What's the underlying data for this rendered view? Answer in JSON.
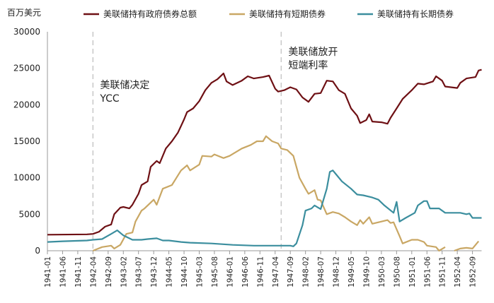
{
  "chart_data": {
    "type": "line",
    "ylabel": "百万美元",
    "ylim": [
      0,
      30000
    ],
    "yticks": [
      0,
      5000,
      10000,
      15000,
      20000,
      25000,
      30000
    ],
    "xrange": [
      "1941-01",
      "1952-12"
    ],
    "xticks": [
      "1941-01",
      "1941-06",
      "1941-11",
      "1942-04",
      "1942-09",
      "1943-02",
      "1943-07",
      "1943-12",
      "1944-05",
      "1944-10",
      "1945-03",
      "1945-08",
      "1946-01",
      "1946-06",
      "1946-11",
      "1947-04",
      "1947-09",
      "1948-02",
      "1948-07",
      "1948-12",
      "1949-05",
      "1949-10",
      "1950-03",
      "1950-08",
      "1951-01",
      "1951-06",
      "1951-11",
      "1952-04",
      "1952-09"
    ],
    "grid": false,
    "legend_position": "top",
    "annotations": [
      {
        "lines": [
          "美联储决定",
          "YCC"
        ],
        "x": "1942-04"
      },
      {
        "lines": [
          "美联储放开",
          "短端利率"
        ],
        "x": "1947-06"
      }
    ],
    "series": [
      {
        "name": "美联储持有政府债券总额",
        "color": "#6e1014",
        "points": [
          [
            "1941-01",
            2200
          ],
          [
            "1942-02",
            2250
          ],
          [
            "1942-04",
            2300
          ],
          [
            "1942-06",
            2600
          ],
          [
            "1942-08",
            3300
          ],
          [
            "1942-10",
            3600
          ],
          [
            "1942-11",
            5000
          ],
          [
            "1943-01",
            5900
          ],
          [
            "1943-02",
            6000
          ],
          [
            "1943-04",
            5800
          ],
          [
            "1943-05",
            6300
          ],
          [
            "1943-07",
            7800
          ],
          [
            "1943-08",
            9000
          ],
          [
            "1943-10",
            9500
          ],
          [
            "1943-11",
            11500
          ],
          [
            "1944-01",
            12300
          ],
          [
            "1944-02",
            12000
          ],
          [
            "1944-04",
            14000
          ],
          [
            "1944-06",
            15000
          ],
          [
            "1944-08",
            16200
          ],
          [
            "1944-10",
            18000
          ],
          [
            "1944-11",
            19000
          ],
          [
            "1945-01",
            19500
          ],
          [
            "1945-03",
            20500
          ],
          [
            "1945-05",
            22000
          ],
          [
            "1945-07",
            23000
          ],
          [
            "1945-09",
            23500
          ],
          [
            "1945-11",
            24300
          ],
          [
            "1945-12",
            23200
          ],
          [
            "1946-02",
            22700
          ],
          [
            "1946-05",
            23300
          ],
          [
            "1946-07",
            23900
          ],
          [
            "1946-09",
            23600
          ],
          [
            "1946-12",
            23800
          ],
          [
            "1947-02",
            24000
          ],
          [
            "1947-04",
            22200
          ],
          [
            "1947-05",
            21800
          ],
          [
            "1947-07",
            22000
          ],
          [
            "1947-09",
            22400
          ],
          [
            "1947-11",
            22100
          ],
          [
            "1948-01",
            21000
          ],
          [
            "1948-03",
            20400
          ],
          [
            "1948-05",
            21500
          ],
          [
            "1948-07",
            21600
          ],
          [
            "1948-09",
            23300
          ],
          [
            "1948-11",
            23200
          ],
          [
            "1949-01",
            22000
          ],
          [
            "1949-03",
            21500
          ],
          [
            "1949-05",
            19500
          ],
          [
            "1949-07",
            18500
          ],
          [
            "1949-08",
            17500
          ],
          [
            "1949-10",
            17900
          ],
          [
            "1949-11",
            18700
          ],
          [
            "1949-12",
            17700
          ],
          [
            "1950-03",
            17600
          ],
          [
            "1950-05",
            17400
          ],
          [
            "1950-06",
            18200
          ],
          [
            "1950-08",
            19500
          ],
          [
            "1950-10",
            20800
          ],
          [
            "1951-01",
            22000
          ],
          [
            "1951-03",
            22900
          ],
          [
            "1951-05",
            22800
          ],
          [
            "1951-08",
            23200
          ],
          [
            "1951-09",
            23900
          ],
          [
            "1951-11",
            23300
          ],
          [
            "1951-12",
            22500
          ],
          [
            "1952-04",
            22300
          ],
          [
            "1952-05",
            23000
          ],
          [
            "1952-07",
            23600
          ],
          [
            "1952-10",
            23800
          ],
          [
            "1952-11",
            24700
          ],
          [
            "1952-12",
            24800
          ]
        ]
      },
      {
        "name": "美联储持有短期债券",
        "color": "#c9a764",
        "points": [
          [
            "1942-04",
            0
          ],
          [
            "1942-07",
            500
          ],
          [
            "1942-10",
            700
          ],
          [
            "1942-11",
            300
          ],
          [
            "1943-01",
            800
          ],
          [
            "1943-03",
            2300
          ],
          [
            "1943-05",
            2500
          ],
          [
            "1943-06",
            4000
          ],
          [
            "1943-08",
            5500
          ],
          [
            "1943-09",
            5800
          ],
          [
            "1943-12",
            7000
          ],
          [
            "1944-01",
            6300
          ],
          [
            "1944-03",
            8500
          ],
          [
            "1944-06",
            9000
          ],
          [
            "1944-09",
            11000
          ],
          [
            "1944-11",
            11700
          ],
          [
            "1944-12",
            11000
          ],
          [
            "1945-03",
            11800
          ],
          [
            "1945-04",
            13000
          ],
          [
            "1945-07",
            12900
          ],
          [
            "1945-08",
            13200
          ],
          [
            "1945-11",
            12700
          ],
          [
            "1946-01",
            13000
          ],
          [
            "1946-05",
            14000
          ],
          [
            "1946-08",
            14500
          ],
          [
            "1946-10",
            15000
          ],
          [
            "1946-12",
            15000
          ],
          [
            "1947-01",
            15700
          ],
          [
            "1947-03",
            15000
          ],
          [
            "1947-05",
            14700
          ],
          [
            "1947-06",
            14000
          ],
          [
            "1947-08",
            13800
          ],
          [
            "1947-10",
            13000
          ],
          [
            "1947-12",
            10000
          ],
          [
            "1948-02",
            8500
          ],
          [
            "1948-03",
            7800
          ],
          [
            "1948-05",
            8300
          ],
          [
            "1948-06",
            7000
          ],
          [
            "1948-07",
            6900
          ],
          [
            "1948-09",
            5000
          ],
          [
            "1948-11",
            5300
          ],
          [
            "1949-01",
            5100
          ],
          [
            "1949-03",
            4600
          ],
          [
            "1949-05",
            4000
          ],
          [
            "1949-07",
            3500
          ],
          [
            "1949-08",
            4200
          ],
          [
            "1949-09",
            3700
          ],
          [
            "1949-11",
            4600
          ],
          [
            "1949-12",
            3700
          ],
          [
            "1950-03",
            4000
          ],
          [
            "1950-05",
            4200
          ],
          [
            "1950-06",
            3800
          ],
          [
            "1950-07",
            3900
          ],
          [
            "1950-09",
            2000
          ],
          [
            "1950-10",
            1000
          ],
          [
            "1951-01",
            1500
          ],
          [
            "1951-03",
            1500
          ],
          [
            "1951-05",
            1200
          ],
          [
            "1951-06",
            700
          ],
          [
            "1951-09",
            500
          ],
          [
            "1951-10",
            0
          ],
          [
            "1951-12",
            500
          ],
          [
            "1952-02",
            null
          ],
          [
            "1952-03",
            0
          ],
          [
            "1952-05",
            300
          ],
          [
            "1952-07",
            400
          ],
          [
            "1952-09",
            300
          ],
          [
            "1952-11",
            1300
          ]
        ]
      },
      {
        "name": "美联储持有长期债券",
        "color": "#3b8e9e",
        "points": [
          [
            "1941-01",
            1200
          ],
          [
            "1941-06",
            1300
          ],
          [
            "1942-02",
            1400
          ],
          [
            "1942-04",
            1500
          ],
          [
            "1942-07",
            1600
          ],
          [
            "1942-10",
            2300
          ],
          [
            "1942-12",
            2800
          ],
          [
            "1943-02",
            2100
          ],
          [
            "1943-05",
            1500
          ],
          [
            "1943-08",
            1500
          ],
          [
            "1943-10",
            1600
          ],
          [
            "1944-01",
            1700
          ],
          [
            "1944-03",
            1400
          ],
          [
            "1944-05",
            1400
          ],
          [
            "1944-09",
            1200
          ],
          [
            "1944-12",
            1100
          ],
          [
            "1945-07",
            1000
          ],
          [
            "1946-02",
            800
          ],
          [
            "1946-09",
            700
          ],
          [
            "1947-09",
            700
          ],
          [
            "1947-10",
            600
          ],
          [
            "1947-11",
            1000
          ],
          [
            "1948-01",
            3500
          ],
          [
            "1948-02",
            5500
          ],
          [
            "1948-04",
            5800
          ],
          [
            "1948-05",
            6200
          ],
          [
            "1948-07",
            5700
          ],
          [
            "1948-09",
            8500
          ],
          [
            "1948-10",
            10800
          ],
          [
            "1948-11",
            11000
          ],
          [
            "1948-12",
            10500
          ],
          [
            "1949-02",
            9500
          ],
          [
            "1949-05",
            8500
          ],
          [
            "1949-07",
            7700
          ],
          [
            "1949-09",
            7600
          ],
          [
            "1949-12",
            7300
          ],
          [
            "1950-02",
            7000
          ],
          [
            "1950-04",
            6200
          ],
          [
            "1950-07",
            5200
          ],
          [
            "1950-08",
            6700
          ],
          [
            "1950-09",
            4000
          ],
          [
            "1950-11",
            4500
          ],
          [
            "1951-02",
            5200
          ],
          [
            "1951-03",
            6200
          ],
          [
            "1951-05",
            6800
          ],
          [
            "1951-06",
            6800
          ],
          [
            "1951-07",
            5800
          ],
          [
            "1951-10",
            5800
          ],
          [
            "1951-12",
            5200
          ],
          [
            "1952-05",
            5200
          ],
          [
            "1952-07",
            5000
          ],
          [
            "1952-08",
            5100
          ],
          [
            "1952-09",
            4500
          ],
          [
            "1952-12",
            4500
          ]
        ]
      }
    ]
  }
}
